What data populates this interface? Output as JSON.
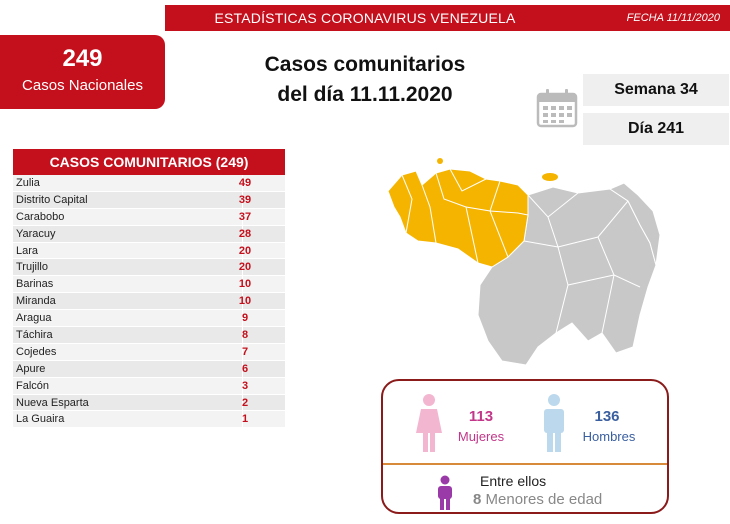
{
  "header": {
    "title": "ESTADÍSTICAS CORONAVIRUS VENEZUELA",
    "date": "FECHA 11/11/2020"
  },
  "national": {
    "count": "249",
    "label": "Casos Nacionales"
  },
  "headline": {
    "line1": "Casos comunitarios",
    "line2": "del día 11.11.2020"
  },
  "calendar": {
    "icon": "calendar-icon",
    "week": "Semana 34",
    "day": "Día 241"
  },
  "table": {
    "title": "CASOS COMUNITARIOS (249)",
    "rows": [
      {
        "state": "Zulia",
        "cases": "49"
      },
      {
        "state": "Distrito Capital",
        "cases": "39"
      },
      {
        "state": "Carabobo",
        "cases": "37"
      },
      {
        "state": "Yaracuy",
        "cases": "28"
      },
      {
        "state": "Lara",
        "cases": "20"
      },
      {
        "state": "Trujillo",
        "cases": "20"
      },
      {
        "state": "Barinas",
        "cases": "10"
      },
      {
        "state": "Miranda",
        "cases": "10"
      },
      {
        "state": "Aragua",
        "cases": "9"
      },
      {
        "state": "Táchira",
        "cases": "8"
      },
      {
        "state": "Cojedes",
        "cases": "7"
      },
      {
        "state": "Apure",
        "cases": "6"
      },
      {
        "state": "Falcón",
        "cases": "3"
      },
      {
        "state": "Nueva Esparta",
        "cases": "2"
      },
      {
        "state": "La Guaira",
        "cases": "1"
      }
    ]
  },
  "map": {
    "highlight_color": "#f5b400",
    "base_color": "#c8c8c8",
    "icon": "venezuela-map"
  },
  "gender": {
    "female_count": "113",
    "female_label": "Mujeres",
    "male_count": "136",
    "male_label": "Hombres",
    "minors_intro": "Entre ellos",
    "minors_count": "8",
    "minors_label": "Menores de edad",
    "female_icon": "female-icon",
    "male_icon": "male-icon",
    "minor_icon": "child-icon"
  },
  "colors": {
    "accent": "#c4101c",
    "female": "#c2378a",
    "male": "#3a5fa0"
  }
}
